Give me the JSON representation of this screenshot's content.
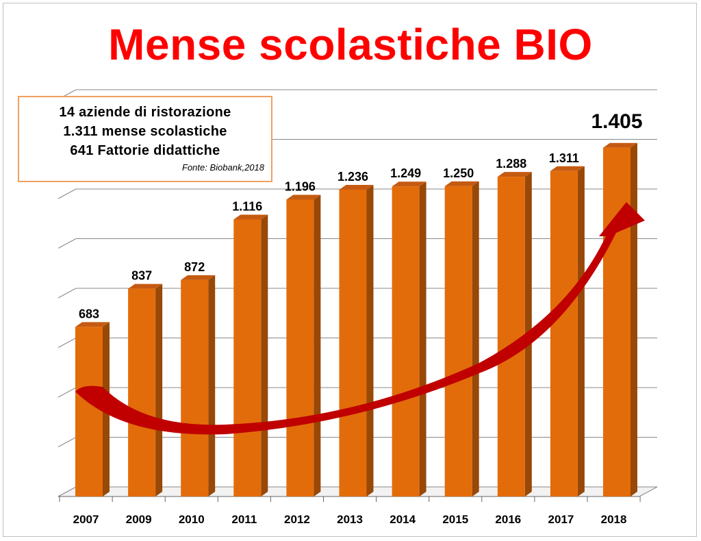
{
  "title": "Mense scolastiche BIO",
  "info_box": {
    "lines": [
      "14 aziende di ristorazione",
      "1.311 mense scolastiche",
      "641 Fattorie didattiche"
    ],
    "source": "Fonte: Biobank,2018"
  },
  "colors": {
    "title": "#ff0000",
    "bar_front": "#e36c0a",
    "bar_side": "#984807",
    "bar_top": "#c55a11",
    "arrow": "#c00000",
    "info_border": "#f0a060"
  },
  "chart_data": {
    "type": "bar",
    "title": "Mense scolastiche BIO",
    "categories": [
      "2007",
      "2009",
      "2010",
      "2011",
      "2012",
      "2013",
      "2014",
      "2015",
      "2016",
      "2017",
      "2018"
    ],
    "values": [
      683,
      837,
      872,
      1116,
      1196,
      1236,
      1249,
      1250,
      1288,
      1311,
      1405
    ],
    "data_labels": [
      "683",
      "837",
      "872",
      "1.116",
      "1.196",
      "1.236",
      "1.249",
      "1.250",
      "1.288",
      "1.311",
      "1.405"
    ],
    "ylim": [
      0,
      1600
    ],
    "grid": true,
    "style": "3d-column",
    "annotation": "rising trend arrow"
  }
}
